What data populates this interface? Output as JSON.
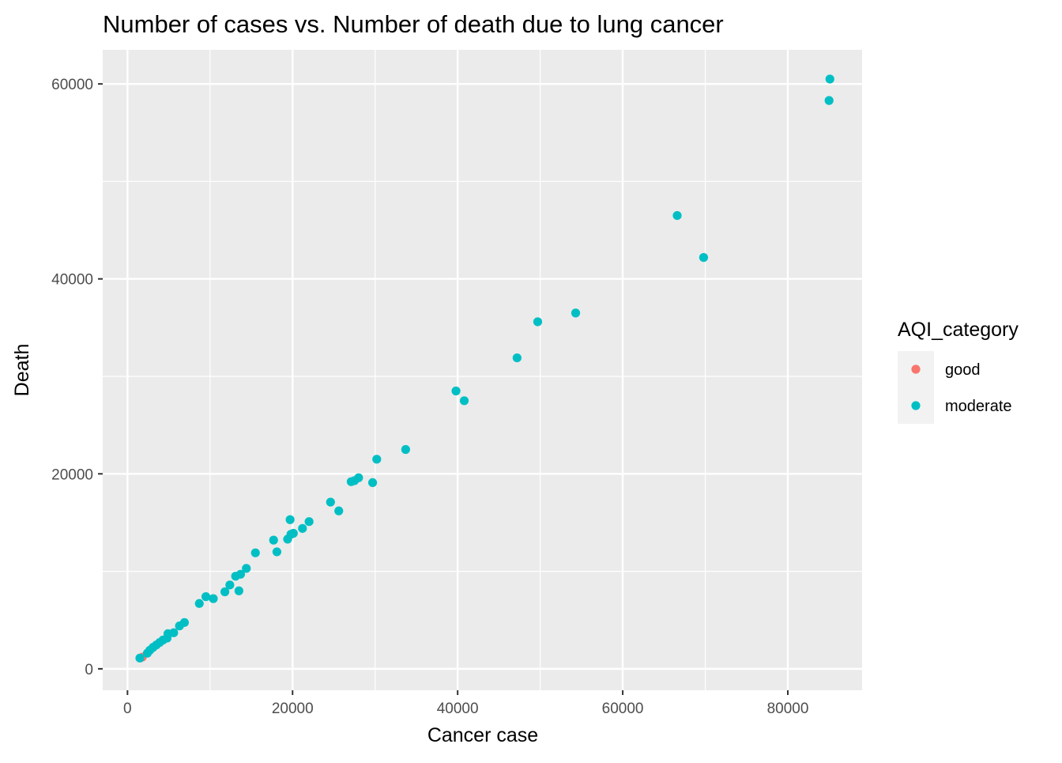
{
  "chart_data": {
    "type": "scatter",
    "title": "Number of cases vs. Number of death due to lung cancer",
    "xlabel": "Cancer case",
    "ylabel": "Death",
    "xlim": [
      -3000,
      89000
    ],
    "ylim": [
      -2200,
      63500
    ],
    "x_ticks": [
      0,
      20000,
      40000,
      60000,
      80000
    ],
    "x_tick_labels": [
      "0",
      "20000",
      "40000",
      "60000",
      "80000"
    ],
    "y_ticks": [
      0,
      20000,
      40000,
      60000
    ],
    "y_tick_labels": [
      "0",
      "20000",
      "40000",
      "60000"
    ],
    "grid": true,
    "background": "#EBEBEB",
    "grid_color": "#FFFFFF",
    "legend": {
      "title": "AQI_category",
      "position": "right",
      "entries": [
        {
          "label": "good",
          "color": "#F8766D"
        },
        {
          "label": "moderate",
          "color": "#00BFC4"
        }
      ]
    },
    "series": [
      {
        "name": "good",
        "color": "#F8766D",
        "points": [
          [
            1800,
            1200
          ]
        ]
      },
      {
        "name": "moderate",
        "color": "#00BFC4",
        "points": [
          [
            1500,
            1100
          ],
          [
            2400,
            1600
          ],
          [
            2700,
            1900
          ],
          [
            3100,
            2200
          ],
          [
            3500,
            2450
          ],
          [
            3900,
            2700
          ],
          [
            4300,
            2950
          ],
          [
            4800,
            3150
          ],
          [
            4900,
            3600
          ],
          [
            5600,
            3700
          ],
          [
            6300,
            4400
          ],
          [
            6900,
            4750
          ],
          [
            8700,
            6700
          ],
          [
            9500,
            7400
          ],
          [
            10400,
            7200
          ],
          [
            11800,
            7900
          ],
          [
            12400,
            8600
          ],
          [
            13100,
            9500
          ],
          [
            13700,
            9700
          ],
          [
            13500,
            8000
          ],
          [
            14400,
            10300
          ],
          [
            15500,
            11900
          ],
          [
            17700,
            13200
          ],
          [
            18100,
            12000
          ],
          [
            19400,
            13300
          ],
          [
            19700,
            15300
          ],
          [
            19800,
            13800
          ],
          [
            20100,
            13900
          ],
          [
            21200,
            14400
          ],
          [
            22000,
            15100
          ],
          [
            24600,
            17100
          ],
          [
            25600,
            16200
          ],
          [
            27100,
            19200
          ],
          [
            27500,
            19300
          ],
          [
            28000,
            19600
          ],
          [
            29700,
            19100
          ],
          [
            30200,
            21500
          ],
          [
            33700,
            22500
          ],
          [
            39800,
            28500
          ],
          [
            40800,
            27500
          ],
          [
            47200,
            31900
          ],
          [
            49700,
            35600
          ],
          [
            54300,
            36500
          ],
          [
            66600,
            46500
          ],
          [
            69800,
            42200
          ],
          [
            85000,
            58300
          ],
          [
            85100,
            60500
          ]
        ]
      }
    ]
  }
}
